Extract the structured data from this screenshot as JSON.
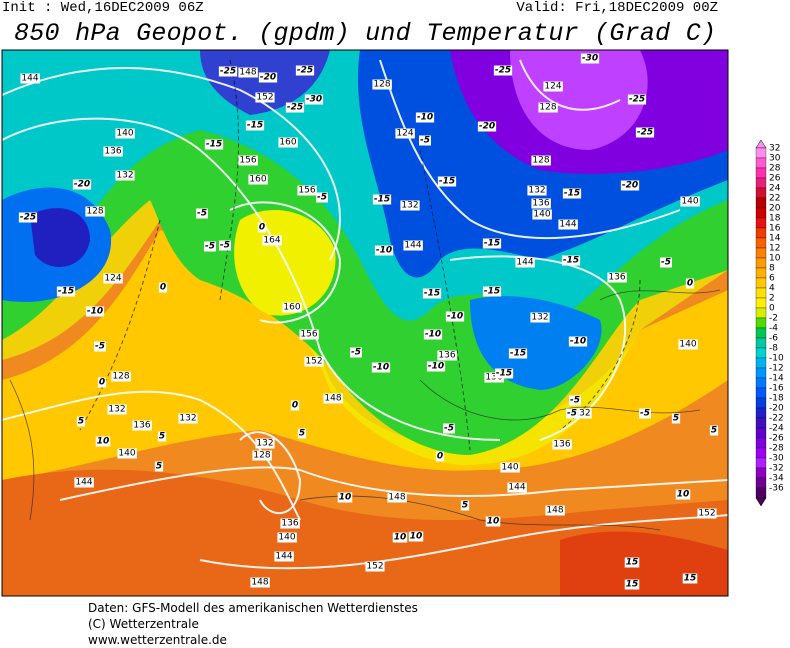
{
  "header": {
    "init": "Init : Wed,16DEC2009 06Z",
    "valid": "Valid: Fri,18DEC2009 00Z",
    "title": "850 hPa Geopot. (gpdm) und Temperatur (Grad C)"
  },
  "map": {
    "height_labels": [
      "144",
      "148",
      "152",
      "128",
      "124",
      "128",
      "140",
      "136",
      "132",
      "128",
      "124",
      "160",
      "156",
      "160",
      "156",
      "124",
      "132",
      "128",
      "132",
      "136",
      "140",
      "144",
      "140",
      "164",
      "144",
      "144",
      "136",
      "160",
      "156",
      "152",
      "132",
      "136",
      "136",
      "140",
      "128",
      "132",
      "136",
      "132",
      "140",
      "148",
      "132",
      "128",
      "132",
      "136",
      "140",
      "144",
      "144",
      "148",
      "148",
      "152",
      "136",
      "140",
      "144",
      "148",
      "152"
    ],
    "temperature_labels": [
      "-25",
      "-20",
      "-25",
      "-25",
      "-30",
      "-25",
      "-30",
      "-25",
      "-15",
      "-15",
      "-10",
      "-5",
      "-20",
      "-25",
      "-20",
      "-25",
      "-5",
      "-5",
      "-15",
      "-15",
      "-15",
      "-20",
      "-5",
      "-5",
      "0",
      "-10",
      "-15",
      "-15",
      "-5",
      "-15",
      "-10",
      "0",
      "-15",
      "-15",
      "-10",
      "-10",
      "-5",
      "-5",
      "-10",
      "-10",
      "-15",
      "-15",
      "-10",
      "0",
      "0",
      "-5",
      "-5",
      "0",
      "5",
      "5",
      "5",
      "-5",
      "-5",
      "5",
      "10",
      "5",
      "0",
      "5",
      "10",
      "5",
      "10",
      "10",
      "10",
      "10",
      "15",
      "15",
      "15"
    ]
  },
  "colorbar": {
    "ticks": [
      32,
      30,
      28,
      26,
      24,
      22,
      20,
      18,
      16,
      14,
      12,
      10,
      8,
      6,
      4,
      2,
      0,
      -2,
      -4,
      -6,
      -8,
      -10,
      -12,
      -14,
      -16,
      -18,
      -20,
      -22,
      -24,
      -26,
      -28,
      -30,
      -32,
      -34,
      -36
    ],
    "colors": [
      "#ff8cf0",
      "#ff5ad2",
      "#ff30b0",
      "#e8207a",
      "#d01030",
      "#b80000",
      "#d00000",
      "#e81010",
      "#f03c00",
      "#f86000",
      "#fa8000",
      "#fc9a00",
      "#fdb000",
      "#ffc800",
      "#ffe000",
      "#fff000",
      "#d2f000",
      "#50dc00",
      "#00c850",
      "#00c8a0",
      "#00d2d2",
      "#00b4f0",
      "#0096ff",
      "#0078ff",
      "#005aff",
      "#0040e0",
      "#2020c8",
      "#4010c0",
      "#6000d0",
      "#8000e0",
      "#a000f0",
      "#b020ff",
      "#9000c0",
      "#700090",
      "#500060"
    ]
  },
  "footer": [
    "Daten: GFS-Modell des amerikanischen Wetterdienstes",
    "(C) Wetterzentrale",
    "www.wetterzentrale.de"
  ]
}
